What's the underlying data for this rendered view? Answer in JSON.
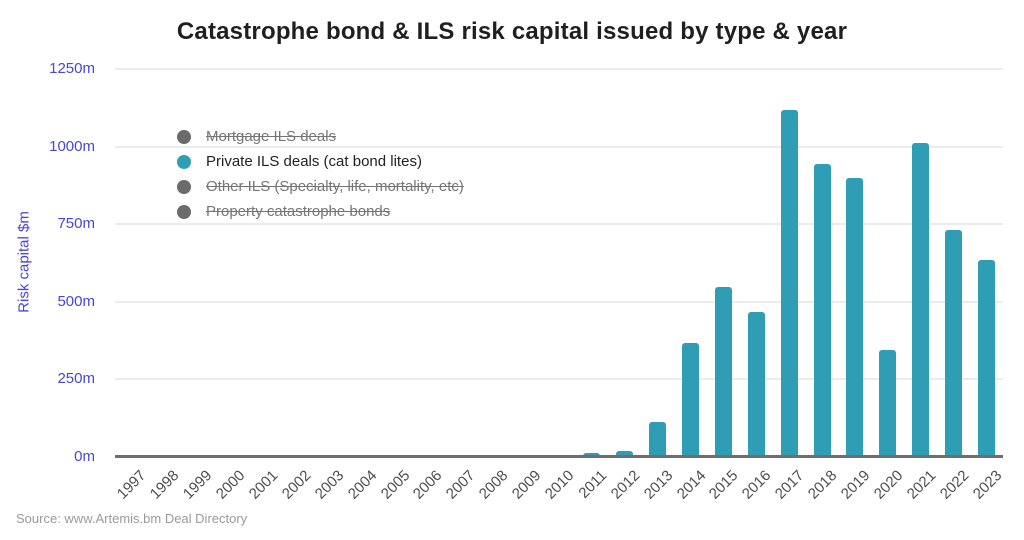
{
  "title": "Catastrophe bond & ILS risk capital issued by type & year",
  "source": "Source: www.Artemis.bm Deal Directory",
  "legend": {
    "items": [
      {
        "label": "Mortgage ILS deals",
        "color": "#6b6b6b",
        "active": false
      },
      {
        "label": "Private ILS deals (cat bond lites)",
        "color": "#2f9db3",
        "active": true
      },
      {
        "label": "Other ILS (Specialty, life, mortality, etc)",
        "color": "#6b6b6b",
        "active": false
      },
      {
        "label": "Property catastrophe bonds",
        "color": "#6b6b6b",
        "active": false
      }
    ]
  },
  "chart_data": {
    "type": "bar",
    "title": "Catastrophe bond & ILS risk capital issued by type & year",
    "xlabel": "",
    "ylabel": "Risk capital $m",
    "ylim": [
      0,
      1250
    ],
    "grid": true,
    "legend_position": "top-left-inside",
    "yticks": [
      {
        "value": 0,
        "label": "0m"
      },
      {
        "value": 250,
        "label": "250m"
      },
      {
        "value": 500,
        "label": "500m"
      },
      {
        "value": 750,
        "label": "750m"
      },
      {
        "value": 1000,
        "label": "1000m"
      },
      {
        "value": 1250,
        "label": "1250m"
      }
    ],
    "categories": [
      "1997",
      "1998",
      "1999",
      "2000",
      "2001",
      "2002",
      "2003",
      "2004",
      "2005",
      "2006",
      "2007",
      "2008",
      "2009",
      "2010",
      "2011",
      "2012",
      "2013",
      "2014",
      "2015",
      "2016",
      "2017",
      "2018",
      "2019",
      "2020",
      "2021",
      "2022",
      "2023"
    ],
    "series": [
      {
        "name": "Private ILS deals (cat bond lites)",
        "color": "#2f9db3",
        "values": [
          0,
          0,
          0,
          0,
          0,
          0,
          0,
          0,
          0,
          0,
          0,
          0,
          0,
          0,
          12,
          20,
          113,
          367,
          549,
          468,
          1118,
          944,
          898,
          345,
          1012,
          731,
          635
        ]
      }
    ]
  },
  "colors": {
    "bar": "#2f9db3",
    "axis_label_blue": "#4846d2",
    "x_label": "#4d4d4d",
    "gridline": "#ececec",
    "axis_line": "#6e6e6e",
    "title": "#1f1f1f",
    "legend_disabled": "#757575",
    "source": "#9a9a9a"
  }
}
